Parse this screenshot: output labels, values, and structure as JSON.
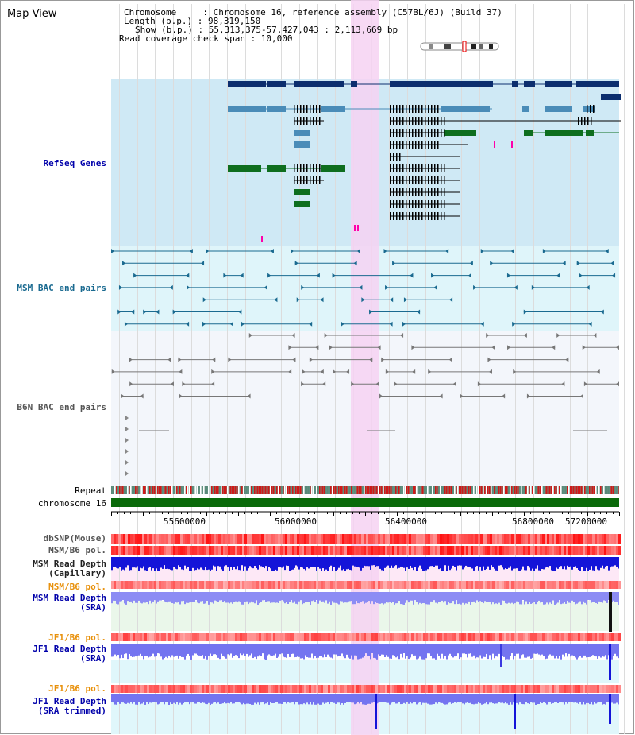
{
  "title": "Map View",
  "info": {
    "chromosome": "Chromosome     : Chromosome 16, reference assembly (C57BL/6J) (Build 37)",
    "length": "Length (b.p.) : 98,319,150",
    "show": "Show (b.p.) : 55,313,375-57,427,043 : 2,113,669 bp",
    "coverage": "Read coverage check span : 10,000"
  },
  "tracks": {
    "refseq": "RefSeq Genes",
    "msm_bac": "MSM BAC end pairs",
    "b6n_bac": "B6N BAC end pairs",
    "repeat": "Repeat",
    "chrom": "chromosome 16",
    "dbsnp": "dbSNP(Mouse)",
    "msm_b6_pol": "MSM/B6 pol.",
    "msm_depth_cap_1": "MSM Read Depth",
    "msm_depth_cap_2": "(Capillary)",
    "msm_b6_pol2": "MSM/B6 pol.",
    "msm_depth_sra_1": "MSM Read Depth",
    "msm_depth_sra_2": "(SRA)",
    "jf1_pol": "JF1/B6 pol.",
    "jf1_depth_1": "JF1 Read Depth",
    "jf1_depth_2": "(SRA)",
    "jf1_pol2": "JF1/B6 pol.",
    "jf1_trim_1": "JF1 Read Depth",
    "jf1_trim_2": "(SRA trimmed)"
  },
  "axis_ticks": [
    "55600000",
    "56000000",
    "56400000",
    "56800000",
    "57200000"
  ],
  "colors": {
    "refseq_bg": "#cfe9f5",
    "bac_bg": "#dff5fa",
    "highlight": "#f6d2f2",
    "gene_dark": "#0c2e6e",
    "gene_mid": "#4a8cb8",
    "gene_green": "#0e6e1e",
    "chrom": "#0a6a0a",
    "depth": "#2a2ad8"
  }
}
